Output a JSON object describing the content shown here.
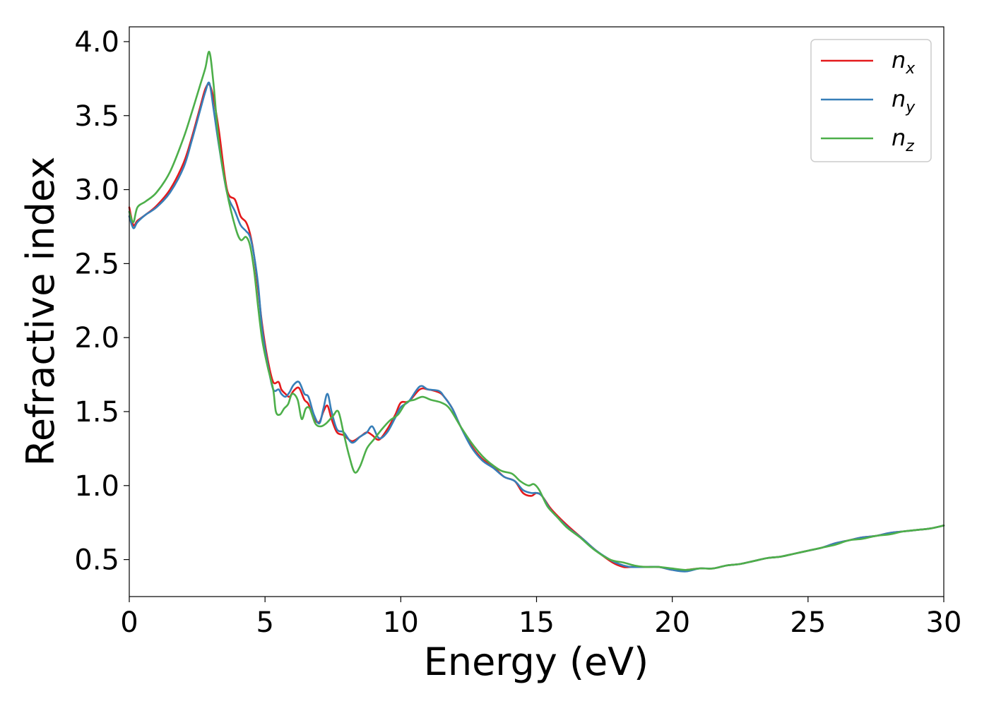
{
  "chart_data": {
    "type": "line",
    "title": "",
    "xlabel": "Energy (eV)",
    "ylabel": "Refractive index",
    "xlim": [
      0,
      30
    ],
    "ylim": [
      0.25,
      4.1
    ],
    "xticks": [
      0,
      5,
      10,
      15,
      20,
      25,
      30
    ],
    "yticks": [
      0.5,
      1.0,
      1.5,
      2.0,
      2.5,
      3.0,
      3.5,
      4.0
    ],
    "xtick_labels": [
      "0",
      "5",
      "10",
      "15",
      "20",
      "25",
      "30"
    ],
    "ytick_labels": [
      "0.5",
      "1.0",
      "1.5",
      "2.0",
      "2.5",
      "3.0",
      "3.5",
      "4.0"
    ],
    "grid": false,
    "legend_position": "top-right",
    "series": [
      {
        "name": "n_x",
        "label_base": "n",
        "label_sub": "x",
        "color": "#e41a1c",
        "x": [
          0,
          0.15,
          0.3,
          0.6,
          1.0,
          1.5,
          2.0,
          2.3,
          2.6,
          2.8,
          2.95,
          3.1,
          3.3,
          3.6,
          3.9,
          4.1,
          4.3,
          4.45,
          4.6,
          4.75,
          4.9,
          5.1,
          5.3,
          5.5,
          5.6,
          5.75,
          5.9,
          6.05,
          6.25,
          6.45,
          6.6,
          6.8,
          7.0,
          7.15,
          7.3,
          7.45,
          7.65,
          7.9,
          8.2,
          8.5,
          8.75,
          8.95,
          9.2,
          9.5,
          9.8,
          10.0,
          10.3,
          10.7,
          11.0,
          11.4,
          11.6,
          11.9,
          12.2,
          12.6,
          13.0,
          13.4,
          13.8,
          14.2,
          14.5,
          14.8,
          15.0,
          15.2,
          15.5,
          15.8,
          16.2,
          16.7,
          17.2,
          17.8,
          18.2,
          18.5,
          19.0,
          19.5,
          20.0,
          20.5,
          21.0,
          21.5,
          22.0,
          22.5,
          23.0,
          23.5,
          24.0,
          24.5,
          25.0,
          25.5,
          26.0,
          26.5,
          27.0,
          27.5,
          28.0,
          28.5,
          29.0,
          29.5,
          30.0
        ],
        "y": [
          2.88,
          2.76,
          2.79,
          2.83,
          2.89,
          3.0,
          3.18,
          3.35,
          3.55,
          3.68,
          3.71,
          3.62,
          3.4,
          3.0,
          2.93,
          2.82,
          2.78,
          2.7,
          2.55,
          2.32,
          2.08,
          1.85,
          1.7,
          1.7,
          1.65,
          1.62,
          1.6,
          1.64,
          1.66,
          1.58,
          1.55,
          1.45,
          1.43,
          1.5,
          1.54,
          1.45,
          1.36,
          1.34,
          1.3,
          1.33,
          1.36,
          1.34,
          1.31,
          1.38,
          1.48,
          1.56,
          1.57,
          1.65,
          1.65,
          1.63,
          1.6,
          1.52,
          1.4,
          1.27,
          1.18,
          1.13,
          1.06,
          1.03,
          0.95,
          0.93,
          0.95,
          0.93,
          0.85,
          0.79,
          0.72,
          0.64,
          0.56,
          0.48,
          0.45,
          0.45,
          0.45,
          0.45,
          0.43,
          0.43,
          0.44,
          0.44,
          0.46,
          0.47,
          0.49,
          0.51,
          0.52,
          0.54,
          0.56,
          0.58,
          0.61,
          0.63,
          0.65,
          0.66,
          0.68,
          0.69,
          0.7,
          0.71,
          0.73
        ]
      },
      {
        "name": "n_y",
        "label_base": "n",
        "label_sub": "y",
        "color": "#377eb8",
        "x": [
          0,
          0.15,
          0.3,
          0.6,
          1.0,
          1.5,
          2.0,
          2.3,
          2.6,
          2.8,
          2.95,
          3.1,
          3.3,
          3.6,
          3.9,
          4.1,
          4.3,
          4.45,
          4.6,
          4.75,
          4.9,
          5.1,
          5.3,
          5.5,
          5.6,
          5.75,
          5.9,
          6.05,
          6.25,
          6.45,
          6.6,
          6.8,
          7.0,
          7.15,
          7.3,
          7.45,
          7.65,
          7.9,
          8.2,
          8.5,
          8.75,
          8.95,
          9.2,
          9.5,
          9.8,
          10.0,
          10.3,
          10.7,
          11.0,
          11.4,
          11.6,
          11.9,
          12.2,
          12.6,
          13.0,
          13.4,
          13.8,
          14.2,
          14.5,
          14.8,
          15.0,
          15.2,
          15.5,
          15.8,
          16.2,
          16.7,
          17.2,
          17.8,
          18.2,
          18.5,
          19.0,
          19.5,
          20.0,
          20.5,
          21.0,
          21.5,
          22.0,
          22.5,
          23.0,
          23.5,
          24.0,
          24.5,
          25.0,
          25.5,
          26.0,
          26.5,
          27.0,
          27.5,
          28.0,
          28.5,
          29.0,
          29.5,
          30.0
        ],
        "y": [
          2.82,
          2.74,
          2.78,
          2.83,
          2.88,
          2.98,
          3.15,
          3.33,
          3.53,
          3.66,
          3.72,
          3.55,
          3.3,
          2.98,
          2.85,
          2.76,
          2.72,
          2.68,
          2.55,
          2.35,
          2.05,
          1.82,
          1.65,
          1.65,
          1.62,
          1.6,
          1.63,
          1.68,
          1.7,
          1.62,
          1.6,
          1.48,
          1.42,
          1.52,
          1.62,
          1.5,
          1.38,
          1.36,
          1.29,
          1.33,
          1.36,
          1.4,
          1.32,
          1.36,
          1.46,
          1.53,
          1.57,
          1.67,
          1.65,
          1.64,
          1.6,
          1.52,
          1.4,
          1.26,
          1.17,
          1.12,
          1.06,
          1.03,
          0.97,
          0.95,
          0.95,
          0.93,
          0.84,
          0.78,
          0.71,
          0.64,
          0.56,
          0.49,
          0.46,
          0.45,
          0.45,
          0.45,
          0.43,
          0.42,
          0.44,
          0.44,
          0.46,
          0.47,
          0.49,
          0.51,
          0.52,
          0.54,
          0.56,
          0.58,
          0.61,
          0.63,
          0.65,
          0.66,
          0.68,
          0.69,
          0.7,
          0.71,
          0.73
        ]
      },
      {
        "name": "n_z",
        "label_base": "n",
        "label_sub": "z",
        "color": "#4daf4a",
        "x": [
          0,
          0.15,
          0.3,
          0.6,
          1.0,
          1.5,
          2.0,
          2.3,
          2.6,
          2.8,
          2.95,
          3.1,
          3.3,
          3.6,
          3.9,
          4.1,
          4.3,
          4.45,
          4.6,
          4.75,
          4.9,
          5.1,
          5.3,
          5.4,
          5.55,
          5.7,
          5.85,
          6.0,
          6.2,
          6.35,
          6.5,
          6.65,
          6.85,
          7.05,
          7.25,
          7.5,
          7.7,
          7.9,
          8.1,
          8.3,
          8.5,
          8.75,
          9.0,
          9.3,
          9.6,
          9.9,
          10.2,
          10.5,
          10.8,
          11.1,
          11.5,
          11.8,
          12.2,
          12.6,
          13.0,
          13.3,
          13.7,
          14.1,
          14.4,
          14.7,
          14.9,
          15.1,
          15.4,
          15.7,
          16.1,
          16.6,
          17.1,
          17.7,
          18.2,
          18.6,
          19.0,
          19.5,
          20.0,
          20.5,
          21.0,
          21.5,
          22.0,
          22.5,
          23.0,
          23.5,
          24.0,
          24.5,
          25.0,
          25.5,
          26.0,
          26.5,
          27.0,
          27.5,
          28.0,
          28.5,
          29.0,
          29.5,
          30.0
        ],
        "y": [
          2.85,
          2.78,
          2.88,
          2.92,
          2.98,
          3.12,
          3.35,
          3.52,
          3.7,
          3.82,
          3.93,
          3.72,
          3.32,
          2.98,
          2.75,
          2.66,
          2.68,
          2.62,
          2.45,
          2.2,
          1.98,
          1.8,
          1.65,
          1.5,
          1.48,
          1.52,
          1.55,
          1.62,
          1.58,
          1.45,
          1.52,
          1.52,
          1.42,
          1.4,
          1.42,
          1.47,
          1.5,
          1.35,
          1.2,
          1.09,
          1.13,
          1.25,
          1.31,
          1.38,
          1.44,
          1.48,
          1.56,
          1.58,
          1.6,
          1.58,
          1.56,
          1.52,
          1.4,
          1.29,
          1.2,
          1.15,
          1.1,
          1.08,
          1.03,
          1.0,
          1.01,
          0.97,
          0.86,
          0.8,
          0.72,
          0.65,
          0.57,
          0.5,
          0.48,
          0.46,
          0.45,
          0.45,
          0.44,
          0.43,
          0.44,
          0.44,
          0.46,
          0.47,
          0.49,
          0.51,
          0.52,
          0.54,
          0.56,
          0.58,
          0.6,
          0.63,
          0.64,
          0.66,
          0.67,
          0.69,
          0.7,
          0.71,
          0.73
        ]
      }
    ]
  }
}
